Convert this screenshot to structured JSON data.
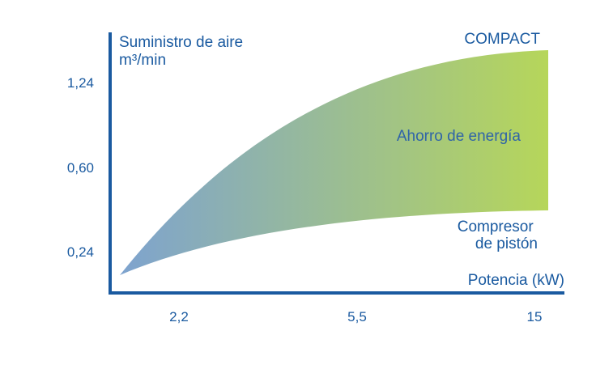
{
  "chart_data": {
    "type": "area",
    "ylabel": "Suministro de aire",
    "ylabel_unit": "m³/min",
    "xlabel": "Potencia (kW)",
    "categories": [
      "2,2",
      "5,5",
      "15"
    ],
    "yticks": [
      "0,24",
      "0,60",
      "1,24"
    ],
    "series": [
      {
        "name": "COMPACT",
        "values": [
          0.3,
          0.86,
          1.36
        ]
      },
      {
        "name": "Compresor de pistón",
        "values": [
          0.26,
          0.47,
          0.51
        ]
      }
    ],
    "annotation": "Ahorro de energía",
    "grid": false,
    "legend": "none",
    "colors": {
      "axis": "#1a5aa0",
      "gradient_start": "#7ea3cf",
      "gradient_end": "#b6d65a"
    }
  }
}
